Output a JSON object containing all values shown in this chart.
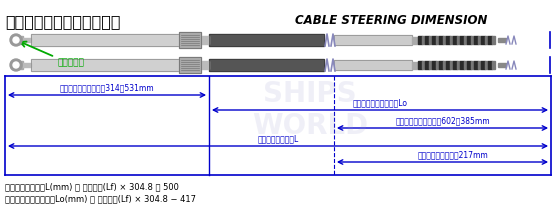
{
  "title_jp": "セーフＴメカハンケーブル",
  "title_en": "CABLE STEERING DIMENSION",
  "stroke_label": "ストローク",
  "dim1_label": "エンジン側突出し：約314〜531mm",
  "dim2_label": "アウターケーブル長：Lo",
  "dim3_label": "ハンドル側突出し：約602〜385mm",
  "dim4_label": "ケーブル総長さ：L",
  "dim5_label": "可動ストローク：約217mm",
  "formula1": "ケーブル総長さ：L(mm) ＝ 表記長さ(Lf) × 304.8 ＋ 500",
  "formula2": "アウターケーブル長：Lo(mm) ＝ 表記長さ(Lf) × 304.8 − 417",
  "bg_color": "#ffffff",
  "blue": "#0000cc",
  "green": "#00aa00"
}
